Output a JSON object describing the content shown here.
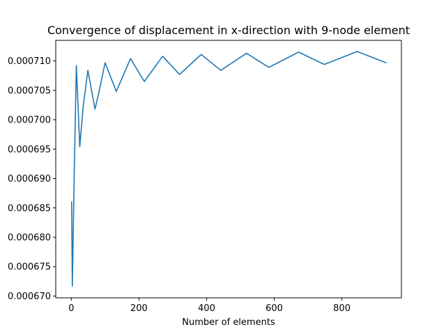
{
  "chart_data": {
    "type": "line",
    "title": "Convergence of displacement in x-direction with 9-node element",
    "xlabel": "Number of elements",
    "ylabel": "",
    "xlim": [
      -46,
      976
    ],
    "ylim": [
      0.0006697,
      0.0007135
    ],
    "x_ticks": [
      0,
      200,
      400,
      600,
      800
    ],
    "x_tick_labels": [
      "0",
      "200",
      "400",
      "600",
      "800"
    ],
    "y_ticks": [
      0.00067,
      0.000675,
      0.00068,
      0.000685,
      0.00069,
      0.000695,
      0.0007,
      0.000705,
      0.00071
    ],
    "y_tick_labels": [
      "0.000670",
      "0.000675",
      "0.000680",
      "0.000685",
      "0.000690",
      "0.000695",
      "0.000700",
      "0.000705",
      "0.000710"
    ],
    "grid": false,
    "colors": {
      "series": "#1f77b4"
    },
    "series": [
      {
        "name": "",
        "x": [
          1,
          3,
          9,
          15,
          25,
          35,
          49,
          70,
          81,
          100,
          133,
          175,
          216,
          270,
          320,
          384,
          442,
          518,
          584,
          672,
          748,
          845,
          930
        ],
        "y": [
          0.000686,
          0.0006717,
          0.000692,
          0.0007092,
          0.0006954,
          0.0007022,
          0.0007084,
          0.0007018,
          0.0007045,
          0.0007097,
          0.0007048,
          0.0007104,
          0.0007065,
          0.0007108,
          0.0007077,
          0.0007111,
          0.0007084,
          0.0007113,
          0.0007089,
          0.0007115,
          0.0007094,
          0.0007116,
          0.0007097
        ]
      }
    ]
  }
}
